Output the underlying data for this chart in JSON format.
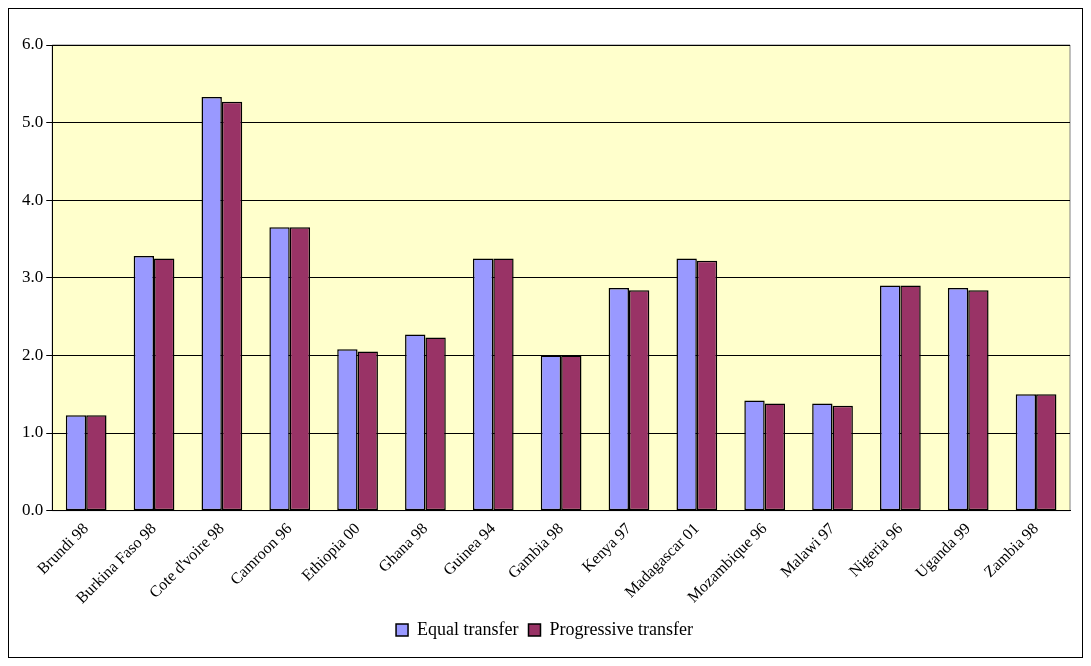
{
  "chart_data": {
    "type": "bar",
    "categories": [
      "Brundi 98",
      "Burkina Faso 98",
      "Cote d'voire 98",
      "Camroon 96",
      "Ethiopia 00",
      "Ghana 98",
      "Guinea 94",
      "Gambia 98",
      "Kenya 97",
      "Madagascar 01",
      "Mozambique 96",
      "Malawi 97",
      "Nigeria 96",
      "Uganda 99",
      "Zambia 98"
    ],
    "series": [
      {
        "name": "Equal transfer",
        "color": "#9999ff",
        "values": [
          1.23,
          3.28,
          5.33,
          3.65,
          2.08,
          2.27,
          3.25,
          2.0,
          2.87,
          3.25,
          1.42,
          1.38,
          2.9,
          2.87,
          1.5
        ]
      },
      {
        "name": "Progressive transfer",
        "color": "#993366",
        "values": [
          1.23,
          3.25,
          5.27,
          3.65,
          2.05,
          2.23,
          3.25,
          2.0,
          2.84,
          3.22,
          1.38,
          1.35,
          2.9,
          2.84,
          1.5
        ]
      }
    ],
    "ylim": [
      0,
      6
    ],
    "yticks": [
      {
        "value": 0,
        "label": "0.0"
      },
      {
        "value": 1,
        "label": "1.0"
      },
      {
        "value": 2,
        "label": "2.0"
      },
      {
        "value": 3,
        "label": "3.0"
      },
      {
        "value": 4,
        "label": "4.0"
      },
      {
        "value": 5,
        "label": "5.0"
      },
      {
        "value": 6,
        "label": "6.0"
      }
    ],
    "grid": "y",
    "legend": "bottom"
  }
}
